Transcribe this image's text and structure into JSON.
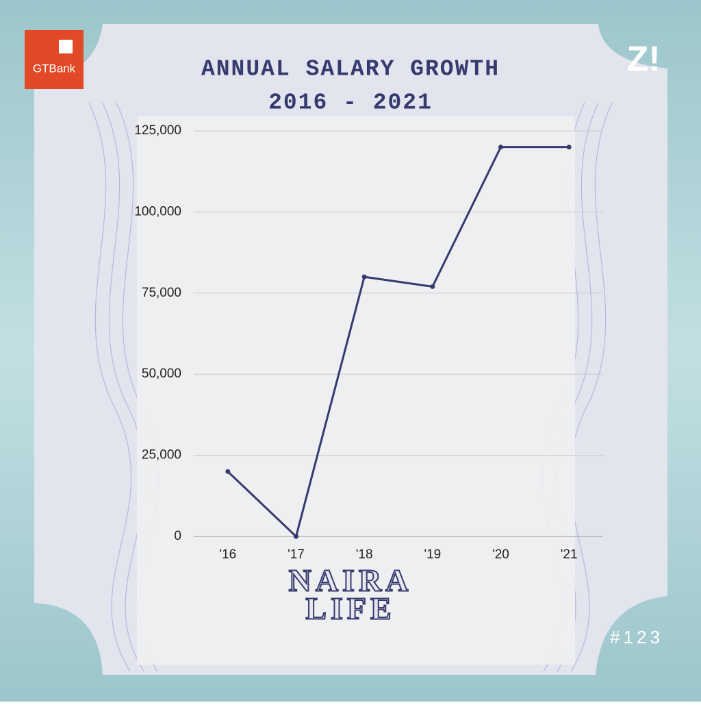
{
  "chart_data": {
    "type": "line",
    "title": "ANNUAL SALARY GROWTH",
    "subtitle": "2016 - 2021",
    "categories": [
      "'16",
      "'17",
      "'18",
      "'19",
      "'20",
      "'21"
    ],
    "values": [
      20000,
      0,
      80000,
      77000,
      120000,
      120000
    ],
    "color": "#363a6e",
    "ylim": [
      0,
      125000
    ],
    "yticks": [
      0,
      {
        "value": 25000,
        "label": "25,000"
      },
      {
        "value": 50000,
        "label": "50,000"
      },
      {
        "value": 75000,
        "label": "75,000"
      },
      {
        "value": 100000,
        "label": "100,000"
      },
      {
        "value": 125000,
        "label": "125,000"
      }
    ],
    "grid": true
  },
  "branding": {
    "bank": "GTBank",
    "publisher": "Z!",
    "series": [
      "NAIRA",
      "LIFE"
    ],
    "issue": "#123"
  }
}
